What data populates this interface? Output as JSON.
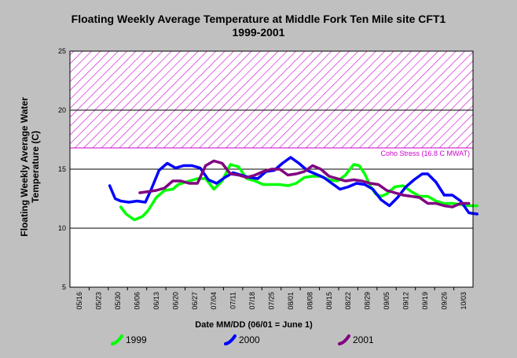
{
  "chart_data": {
    "type": "line",
    "title": "Floating Weekly Average Temperature at Middle Fork Ten Mile site CFT1",
    "subtitle": "1999-2001",
    "xlabel": "Date MM/DD (06/01 = June 1)",
    "ylabel_line1": "Floating Weekly Average Water",
    "ylabel_line2": "Temperature (C)",
    "ylim": [
      5,
      25
    ],
    "yticks": [
      "5",
      "10",
      "15",
      "20",
      "25"
    ],
    "grid": "horizontal",
    "x_categories": [
      "05/16",
      "05/23",
      "05/30",
      "06/06",
      "06/13",
      "06/20",
      "06/27",
      "07/04",
      "07/11",
      "07/18",
      "07/25",
      "08/01",
      "08/08",
      "08/15",
      "08/22",
      "08/29",
      "09/05",
      "09/12",
      "09/19",
      "09/26",
      "10/03"
    ],
    "threshold": {
      "label": "Coho Stress (16.8 C MWAT)",
      "from": 16.8,
      "to": 25,
      "color": "#cc00cc"
    },
    "series": [
      {
        "name": "1999",
        "color": "#00ff00",
        "x": [
          "05/31",
          "06/02",
          "06/05",
          "06/08",
          "06/10",
          "06/13",
          "06/16",
          "06/19",
          "06/21",
          "06/25",
          "06/28",
          "07/01",
          "07/04",
          "07/07",
          "07/10",
          "07/13",
          "07/16",
          "07/19",
          "07/22",
          "07/25",
          "07/28",
          "07/31",
          "08/03",
          "08/06",
          "08/09",
          "08/12",
          "08/15",
          "08/18",
          "08/21",
          "08/24",
          "08/26",
          "08/28",
          "08/30",
          "09/01",
          "09/03",
          "09/05",
          "09/08",
          "09/11",
          "09/14",
          "09/17",
          "09/20",
          "09/23",
          "09/26",
          "09/29",
          "10/02",
          "10/05",
          "10/08"
        ],
        "y": [
          11.8,
          11.2,
          10.7,
          11.0,
          11.5,
          12.6,
          13.2,
          13.3,
          13.7,
          14.0,
          14.2,
          14.2,
          13.3,
          14.0,
          15.4,
          15.2,
          14.2,
          14.0,
          13.7,
          13.7,
          13.7,
          13.6,
          13.8,
          14.3,
          14.4,
          14.4,
          14.1,
          14.0,
          14.5,
          15.4,
          15.3,
          14.6,
          13.6,
          12.9,
          12.7,
          12.9,
          13.5,
          13.6,
          13.1,
          12.7,
          12.7,
          12.3,
          12.1,
          12.1,
          12.0,
          11.9,
          11.9
        ]
      },
      {
        "name": "2000",
        "color": "#0000ff",
        "x": [
          "05/27",
          "05/29",
          "05/31",
          "06/03",
          "06/06",
          "06/09",
          "06/11",
          "06/14",
          "06/17",
          "06/20",
          "06/23",
          "06/26",
          "06/29",
          "07/02",
          "07/05",
          "07/08",
          "07/11",
          "07/14",
          "07/17",
          "07/20",
          "07/23",
          "07/26",
          "07/29",
          "08/01",
          "08/04",
          "08/07",
          "08/10",
          "08/13",
          "08/16",
          "08/19",
          "08/22",
          "08/25",
          "08/28",
          "08/31",
          "09/03",
          "09/06",
          "09/09",
          "09/12",
          "09/15",
          "09/18",
          "09/20",
          "09/23",
          "09/26",
          "09/29",
          "10/02",
          "10/05",
          "10/08"
        ],
        "y": [
          13.6,
          12.5,
          12.3,
          12.2,
          12.3,
          12.2,
          13.2,
          14.9,
          15.5,
          15.1,
          15.3,
          15.3,
          15.1,
          14.1,
          13.8,
          14.3,
          14.7,
          14.5,
          14.3,
          14.2,
          14.8,
          14.9,
          15.5,
          16.0,
          15.5,
          14.9,
          14.6,
          14.3,
          13.8,
          13.3,
          13.5,
          13.8,
          13.7,
          13.3,
          12.4,
          11.9,
          12.6,
          13.5,
          14.1,
          14.6,
          14.6,
          13.9,
          12.8,
          12.8,
          12.3,
          11.3,
          11.2
        ]
      },
      {
        "name": "2001",
        "color": "#800080",
        "x": [
          "06/07",
          "06/10",
          "06/13",
          "06/16",
          "06/19",
          "06/22",
          "06/25",
          "06/28",
          "07/01",
          "07/04",
          "07/07",
          "07/10",
          "07/13",
          "07/16",
          "07/19",
          "07/22",
          "07/25",
          "07/28",
          "07/31",
          "08/03",
          "08/06",
          "08/09",
          "08/12",
          "08/15",
          "08/18",
          "08/21",
          "08/24",
          "08/27",
          "08/30",
          "09/02",
          "09/05",
          "09/08",
          "09/11",
          "09/14",
          "09/17",
          "09/20",
          "09/23",
          "09/26",
          "09/29",
          "10/02",
          "10/05"
        ],
        "y": [
          13.0,
          13.1,
          13.2,
          13.4,
          14.0,
          14.0,
          13.8,
          13.8,
          15.3,
          15.7,
          15.5,
          14.6,
          14.5,
          14.3,
          14.5,
          14.8,
          15.0,
          15.0,
          14.5,
          14.6,
          14.8,
          15.3,
          15.0,
          14.4,
          14.2,
          14.0,
          14.1,
          14.0,
          13.8,
          13.7,
          13.2,
          13.0,
          12.8,
          12.7,
          12.6,
          12.1,
          12.1,
          11.9,
          11.8,
          12.1,
          12.1
        ]
      }
    ]
  }
}
